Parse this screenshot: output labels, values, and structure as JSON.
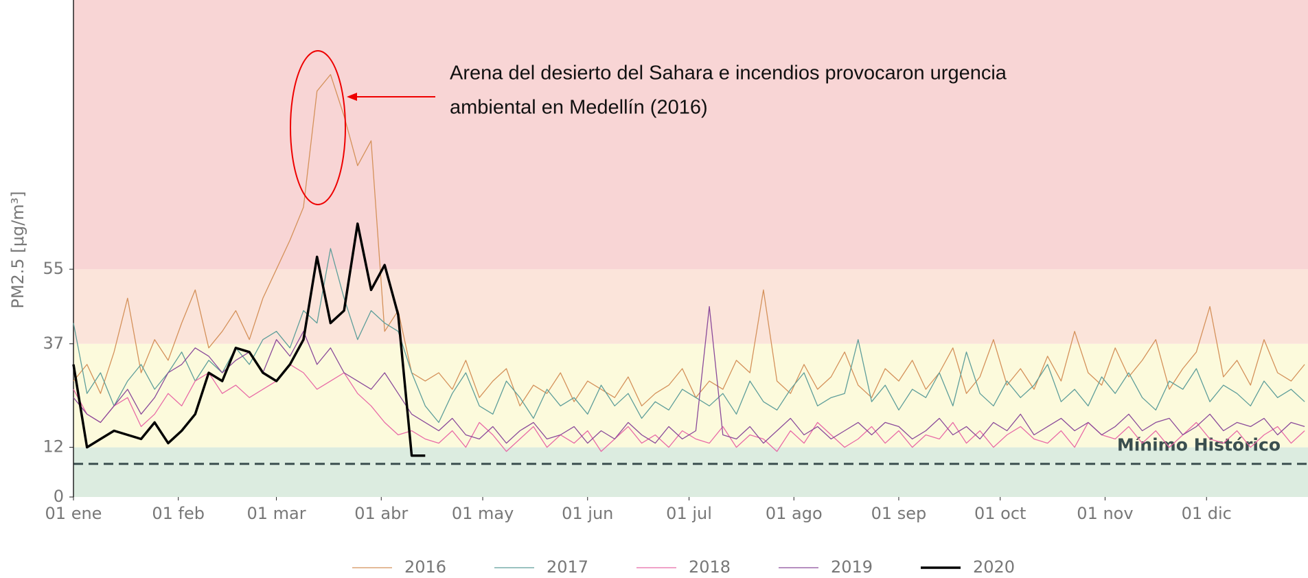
{
  "chart_data": {
    "type": "line",
    "ylabel": "PM2.5 [μg/m³]",
    "x": [
      0,
      4,
      8,
      12,
      16,
      20,
      24,
      28,
      32,
      36,
      40,
      44,
      48,
      52,
      56,
      60,
      64,
      68,
      72,
      76,
      80,
      84,
      88,
      92,
      96,
      100,
      104,
      108,
      112,
      116,
      120,
      124,
      128,
      132,
      136,
      140,
      144,
      148,
      152,
      156,
      160,
      164,
      168,
      172,
      176,
      180,
      184,
      188,
      192,
      196,
      200,
      204,
      208,
      212,
      216,
      220,
      224,
      228,
      232,
      236,
      240,
      244,
      248,
      252,
      256,
      260,
      264,
      268,
      272,
      276,
      280,
      284,
      288,
      292,
      296,
      300,
      304,
      308,
      312,
      316,
      320,
      324,
      328,
      332,
      336,
      340,
      344,
      348,
      352,
      356,
      360,
      364
    ],
    "xlim": [
      0,
      365
    ],
    "xticks": [
      {
        "value": 0,
        "label": "01 ene"
      },
      {
        "value": 31,
        "label": "01 feb"
      },
      {
        "value": 60,
        "label": "01 mar"
      },
      {
        "value": 91,
        "label": "01 abr"
      },
      {
        "value": 121,
        "label": "01 may"
      },
      {
        "value": 152,
        "label": "01 jun"
      },
      {
        "value": 182,
        "label": "01 jul"
      },
      {
        "value": 213,
        "label": "01 ago"
      },
      {
        "value": 244,
        "label": "01 sep"
      },
      {
        "value": 274,
        "label": "01 oct"
      },
      {
        "value": 305,
        "label": "01 nov"
      },
      {
        "value": 335,
        "label": "01 dic"
      }
    ],
    "ylim": [
      0,
      120
    ],
    "yticks": [
      0,
      12,
      37,
      55
    ],
    "bands": [
      {
        "from": 0,
        "to": 12,
        "color": "#dcece0"
      },
      {
        "from": 12,
        "to": 37,
        "color": "#fcfadc"
      },
      {
        "from": 37,
        "to": 55,
        "color": "#fbe4da"
      },
      {
        "from": 55,
        "to": 120,
        "color": "#f8d5d5"
      }
    ],
    "reference_line": {
      "value": 8,
      "label": "Mínimo Histórico",
      "color": "#3b4f4f"
    },
    "annotation": [
      "Arena del desierto del Sahara e incendios provocaron urgencia",
      "ambiental en Medellín (2016)"
    ],
    "series": [
      {
        "name": "2016",
        "color": "#d4915a",
        "width": 1.3,
        "values": [
          28,
          32,
          25,
          35,
          48,
          30,
          38,
          33,
          42,
          50,
          36,
          40,
          45,
          38,
          48,
          55,
          62,
          70,
          98,
          102,
          92,
          80,
          86,
          40,
          45,
          30,
          28,
          30,
          26,
          33,
          24,
          28,
          31,
          22,
          27,
          25,
          30,
          23,
          28,
          26,
          24,
          29,
          22,
          25,
          27,
          31,
          24,
          28,
          26,
          33,
          30,
          50,
          28,
          25,
          32,
          26,
          29,
          35,
          27,
          24,
          31,
          28,
          33,
          26,
          30,
          36,
          25,
          29,
          38,
          27,
          31,
          26,
          34,
          28,
          40,
          30,
          27,
          36,
          29,
          33,
          38,
          26,
          31,
          35,
          46,
          29,
          33,
          27,
          38,
          30,
          28,
          32
        ]
      },
      {
        "name": "2017",
        "color": "#5e9e9a",
        "width": 1.3,
        "values": [
          42,
          25,
          30,
          22,
          28,
          32,
          26,
          30,
          35,
          28,
          33,
          30,
          36,
          32,
          38,
          40,
          36,
          45,
          42,
          60,
          48,
          38,
          45,
          42,
          40,
          30,
          22,
          18,
          25,
          30,
          22,
          20,
          28,
          24,
          19,
          26,
          22,
          24,
          20,
          27,
          22,
          25,
          19,
          23,
          21,
          26,
          24,
          22,
          25,
          20,
          28,
          23,
          21,
          26,
          30,
          22,
          24,
          25,
          38,
          23,
          27,
          21,
          26,
          24,
          30,
          22,
          35,
          25,
          22,
          28,
          24,
          27,
          32,
          23,
          26,
          22,
          29,
          25,
          30,
          24,
          21,
          28,
          26,
          31,
          23,
          27,
          25,
          22,
          28,
          24,
          26,
          23
        ]
      },
      {
        "name": "2018",
        "color": "#e86aa6",
        "width": 1.3,
        "values": [
          26,
          20,
          18,
          22,
          24,
          17,
          20,
          25,
          22,
          28,
          30,
          25,
          27,
          24,
          26,
          28,
          32,
          30,
          26,
          28,
          30,
          25,
          22,
          18,
          15,
          16,
          14,
          13,
          16,
          12,
          18,
          15,
          11,
          14,
          17,
          12,
          15,
          13,
          16,
          11,
          14,
          17,
          13,
          15,
          12,
          16,
          14,
          13,
          17,
          12,
          15,
          14,
          11,
          16,
          13,
          18,
          15,
          12,
          14,
          17,
          13,
          16,
          12,
          15,
          14,
          18,
          13,
          16,
          12,
          15,
          17,
          14,
          13,
          16,
          12,
          18,
          15,
          14,
          17,
          13,
          16,
          12,
          15,
          18,
          14,
          13,
          16,
          12,
          15,
          17,
          13,
          16
        ]
      },
      {
        "name": "2019",
        "color": "#8a4a9a",
        "width": 1.3,
        "values": [
          24,
          20,
          18,
          22,
          26,
          20,
          24,
          30,
          32,
          36,
          34,
          30,
          33,
          35,
          30,
          38,
          34,
          40,
          32,
          36,
          30,
          28,
          26,
          30,
          25,
          20,
          18,
          16,
          19,
          15,
          14,
          17,
          13,
          16,
          18,
          14,
          15,
          17,
          13,
          16,
          14,
          18,
          15,
          13,
          17,
          14,
          16,
          46,
          15,
          14,
          17,
          13,
          16,
          19,
          15,
          17,
          14,
          16,
          18,
          15,
          18,
          17,
          14,
          16,
          19,
          15,
          17,
          14,
          18,
          16,
          20,
          15,
          17,
          19,
          16,
          18,
          15,
          17,
          20,
          16,
          18,
          19,
          15,
          17,
          20,
          16,
          18,
          17,
          19,
          15,
          18,
          17
        ]
      },
      {
        "name": "2020",
        "color": "#000000",
        "width": 3.5,
        "values": [
          32,
          12,
          14,
          16,
          15,
          14,
          18,
          13,
          16,
          20,
          30,
          28,
          36,
          35,
          30,
          28,
          32,
          38,
          58,
          42,
          45,
          66,
          50,
          56,
          44,
          10,
          10,
          null,
          null,
          null,
          null,
          null,
          null,
          null,
          null,
          null,
          null,
          null,
          null,
          null,
          null,
          null,
          null,
          null,
          null,
          null,
          null,
          null,
          null,
          null,
          null,
          null,
          null,
          null,
          null,
          null,
          null,
          null,
          null,
          null,
          null,
          null,
          null,
          null,
          null,
          null,
          null,
          null,
          null,
          null,
          null,
          null,
          null,
          null,
          null,
          null,
          null,
          null,
          null,
          null,
          null,
          null,
          null,
          null,
          null,
          null,
          null,
          null,
          null,
          null,
          null,
          null
        ]
      }
    ]
  }
}
